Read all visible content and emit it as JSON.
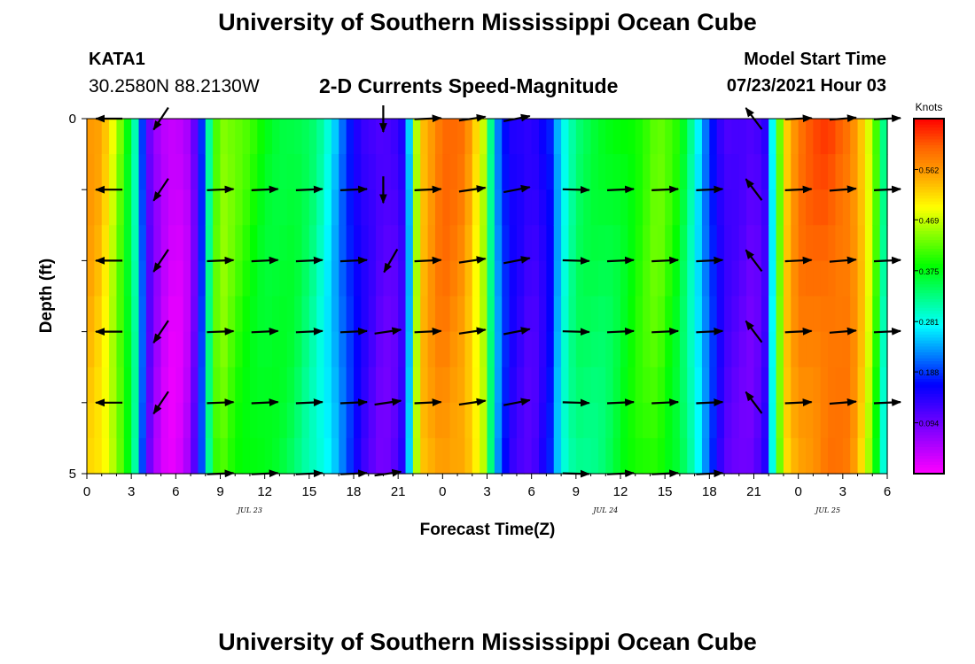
{
  "header": {
    "title": "University of Southern Mississippi Ocean Cube",
    "station": "KATA1",
    "coords": "30.2580N  88.2130W",
    "product": "2-D Currents Speed-Magnitude",
    "model_label": "Model Start Time",
    "model_time": "07/23/2021 Hour 03"
  },
  "footer": {
    "title": "University of Southern Mississippi Ocean Cube"
  },
  "chart_data": {
    "type": "heatmap",
    "title": "2-D Currents Speed-Magnitude",
    "xlabel": "Forecast Time(Z)",
    "ylabel": "Depth (ft)",
    "x_range_hours": [
      0,
      54
    ],
    "y_range": [
      0,
      5
    ],
    "y_ticks": [
      "0",
      "5"
    ],
    "x_tick_labels": [
      "0",
      "3",
      "6",
      "9",
      "12",
      "15",
      "18",
      "21",
      "0",
      "3",
      "6",
      "9",
      "12",
      "15",
      "18",
      "21",
      "0",
      "3",
      "6"
    ],
    "date_labels": [
      {
        "hour": 11,
        "text": "JUL 23"
      },
      {
        "hour": 35,
        "text": "JUL 24"
      },
      {
        "hour": 50,
        "text": "JUL 25"
      }
    ],
    "colorbar": {
      "label": "Knots",
      "min": 0.0,
      "max": 0.656,
      "ticks": [
        "0.562",
        "0.469",
        "0.375",
        "0.281",
        "0.188",
        "0.094"
      ],
      "tick_values": [
        0.562,
        0.469,
        0.375,
        0.281,
        0.188,
        0.094
      ],
      "colors": [
        "#ff00ff",
        "#aa00ff",
        "#5500ff",
        "#0000ff",
        "#0080ff",
        "#00ffff",
        "#00ff80",
        "#00ff00",
        "#80ff00",
        "#ffff00",
        "#ffaa00",
        "#ff6600",
        "#ff0000"
      ]
    },
    "speed_profile": [
      {
        "t": 0,
        "v": 0.56
      },
      {
        "t": 1,
        "v": 0.54
      },
      {
        "t": 2,
        "v": 0.46
      },
      {
        "t": 3,
        "v": 0.36
      },
      {
        "t": 3.5,
        "v": 0.28
      },
      {
        "t": 4,
        "v": 0.12
      },
      {
        "t": 5,
        "v": 0.04
      },
      {
        "t": 6,
        "v": 0.02
      },
      {
        "t": 7,
        "v": 0.06
      },
      {
        "t": 7.7,
        "v": 0.18
      },
      {
        "t": 8,
        "v": 0.26
      },
      {
        "t": 8.5,
        "v": 0.4
      },
      {
        "t": 9,
        "v": 0.45
      },
      {
        "t": 10,
        "v": 0.42
      },
      {
        "t": 12,
        "v": 0.38
      },
      {
        "t": 14,
        "v": 0.36
      },
      {
        "t": 15.5,
        "v": 0.32
      },
      {
        "t": 16.5,
        "v": 0.27
      },
      {
        "t": 17.5,
        "v": 0.2
      },
      {
        "t": 18.5,
        "v": 0.14
      },
      {
        "t": 20,
        "v": 0.1
      },
      {
        "t": 21,
        "v": 0.12
      },
      {
        "t": 21.6,
        "v": 0.17
      },
      {
        "t": 22,
        "v": 0.4
      },
      {
        "t": 22.5,
        "v": 0.54
      },
      {
        "t": 24,
        "v": 0.6
      },
      {
        "t": 25.5,
        "v": 0.58
      },
      {
        "t": 26.8,
        "v": 0.47
      },
      {
        "t": 27.3,
        "v": 0.32
      },
      {
        "t": 27.8,
        "v": 0.22
      },
      {
        "t": 28.5,
        "v": 0.15
      },
      {
        "t": 30,
        "v": 0.12
      },
      {
        "t": 31.2,
        "v": 0.17
      },
      {
        "t": 31.7,
        "v": 0.24
      },
      {
        "t": 32,
        "v": 0.28
      },
      {
        "t": 33,
        "v": 0.34
      },
      {
        "t": 35,
        "v": 0.36
      },
      {
        "t": 37,
        "v": 0.4
      },
      {
        "t": 38.5,
        "v": 0.43
      },
      {
        "t": 40,
        "v": 0.38
      },
      {
        "t": 41,
        "v": 0.3
      },
      {
        "t": 42,
        "v": 0.2
      },
      {
        "t": 43,
        "v": 0.12
      },
      {
        "t": 45,
        "v": 0.1
      },
      {
        "t": 45.8,
        "v": 0.14
      },
      {
        "t": 46.3,
        "v": 0.3
      },
      {
        "t": 47,
        "v": 0.52
      },
      {
        "t": 48,
        "v": 0.59
      },
      {
        "t": 50,
        "v": 0.62
      },
      {
        "t": 51.5,
        "v": 0.6
      },
      {
        "t": 52.5,
        "v": 0.52
      },
      {
        "t": 53.3,
        "v": 0.4
      },
      {
        "t": 54,
        "v": 0.27
      }
    ],
    "vector_rows_ft": [
      0,
      1,
      2,
      3,
      4,
      5
    ],
    "vector_columns": [
      {
        "t": 1.5,
        "dir": [
          -1,
          0
        ],
        "rows": [
          0,
          1,
          2,
          3,
          4
        ]
      },
      {
        "t": 5.0,
        "dir": [
          -0.55,
          -0.83
        ],
        "rows": [
          0,
          1,
          2,
          3,
          4
        ]
      },
      {
        "t": 9.0,
        "dir": [
          1,
          0.04
        ],
        "rows": [
          1,
          2,
          3,
          4,
          5
        ]
      },
      {
        "t": 12.0,
        "dir": [
          1,
          0.05
        ],
        "rows": [
          1,
          2,
          3,
          4,
          5
        ]
      },
      {
        "t": 15.0,
        "dir": [
          1,
          0.05
        ],
        "rows": [
          1,
          2,
          3,
          4,
          5
        ]
      },
      {
        "t": 18.0,
        "dir": [
          1,
          0.05
        ],
        "rows": [
          1,
          2,
          3,
          4,
          5
        ]
      },
      {
        "t": 20.0,
        "dir": [
          0.0,
          -1
        ],
        "rows": [
          0,
          1
        ]
      },
      {
        "t": 20.5,
        "dir": [
          -0.5,
          -0.87
        ],
        "rows": [
          2
        ]
      },
      {
        "t": 20.3,
        "dir": [
          1,
          0.15
        ],
        "rows": [
          3,
          4,
          5
        ]
      },
      {
        "t": 23.0,
        "dir": [
          1,
          0.05
        ],
        "rows": [
          0,
          1,
          2,
          3,
          4
        ]
      },
      {
        "t": 26.0,
        "dir": [
          1,
          0.15
        ],
        "rows": [
          0,
          1,
          2,
          3,
          4
        ]
      },
      {
        "t": 29.0,
        "dir": [
          1,
          0.2
        ],
        "rows": [
          0,
          1,
          2,
          3,
          4
        ]
      },
      {
        "t": 33.0,
        "dir": [
          1,
          -0.03
        ],
        "rows": [
          1,
          2,
          3,
          4,
          5
        ]
      },
      {
        "t": 36.0,
        "dir": [
          1,
          0.05
        ],
        "rows": [
          1,
          2,
          3,
          4,
          5
        ]
      },
      {
        "t": 39.0,
        "dir": [
          1,
          0.05
        ],
        "rows": [
          1,
          2,
          3,
          4,
          5
        ]
      },
      {
        "t": 42.0,
        "dir": [
          1,
          0.05
        ],
        "rows": [
          1,
          2,
          3,
          4,
          5
        ]
      },
      {
        "t": 45.0,
        "dir": [
          -0.6,
          0.8
        ],
        "rows": [
          0,
          1,
          2,
          3,
          4
        ]
      },
      {
        "t": 48.0,
        "dir": [
          1,
          0.05
        ],
        "rows": [
          0,
          1,
          2,
          3,
          4
        ]
      },
      {
        "t": 51.0,
        "dir": [
          1,
          0.08
        ],
        "rows": [
          0,
          1,
          2,
          3,
          4
        ]
      },
      {
        "t": 54.0,
        "dir": [
          1,
          0.05
        ],
        "rows": [
          0,
          1,
          2,
          3,
          4
        ]
      }
    ]
  }
}
